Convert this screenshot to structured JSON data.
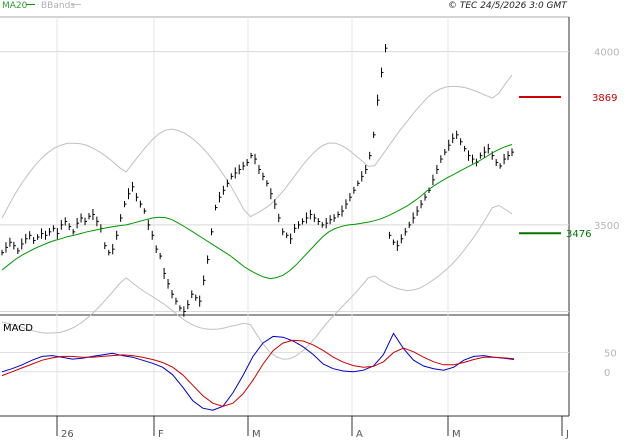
{
  "header": {
    "ma_legend": "MA20",
    "bb_legend": "BBands",
    "stamp": "© TEC 24/5/2026 3:0 GMT"
  },
  "colors": {
    "price": "#000000",
    "ma": "#009900",
    "bands": "#c0c0c0",
    "grid": "#d8d8d8",
    "resistance": "#cc0000",
    "support": "#007700",
    "macd": "#0000cc",
    "signal": "#cc0000"
  },
  "chart_data": [
    {
      "type": "line",
      "title": "",
      "ylim": [
        3240,
        4100
      ],
      "y_ticks": [
        "4000",
        "3500"
      ],
      "x_ticks": [
        "26",
        "F",
        "M",
        "A",
        "M",
        "J"
      ],
      "grid": true,
      "levels": [
        {
          "name": "resistance",
          "value": 3869,
          "label": "3869"
        },
        {
          "name": "support",
          "value": 3476,
          "label": "3476"
        }
      ],
      "series": [
        {
          "name": "price-bars",
          "values": [
            3420,
            3435,
            3450,
            3440,
            3425,
            3445,
            3460,
            3470,
            3455,
            3465,
            3475,
            3470,
            3480,
            3490,
            3475,
            3500,
            3510,
            3495,
            3480,
            3505,
            3520,
            3510,
            3525,
            3530,
            3510,
            3490,
            3440,
            3420,
            3430,
            3470,
            3520,
            3560,
            3590,
            3610,
            3580,
            3560,
            3540,
            3500,
            3470,
            3430,
            3410,
            3360,
            3330,
            3300,
            3280,
            3260,
            3250,
            3270,
            3300,
            3290,
            3280,
            3340,
            3400,
            3480,
            3550,
            3580,
            3600,
            3620,
            3640,
            3650,
            3660,
            3670,
            3680,
            3700,
            3690,
            3660,
            3640,
            3620,
            3590,
            3560,
            3520,
            3480,
            3470,
            3460,
            3490,
            3500,
            3510,
            3520,
            3530,
            3520,
            3510,
            3500,
            3505,
            3515,
            3520,
            3530,
            3540,
            3560,
            3580,
            3600,
            3620,
            3640,
            3660,
            3700,
            3760,
            3860,
            3940,
            4010,
            3470,
            3450,
            3440,
            3460,
            3480,
            3500,
            3520,
            3540,
            3560,
            3580,
            3600,
            3630,
            3660,
            3690,
            3710,
            3730,
            3750,
            3760,
            3740,
            3720,
            3700,
            3690,
            3680,
            3700,
            3710,
            3720,
            3700,
            3680,
            3670,
            3690,
            3700,
            3710
          ],
          "color": "#000000"
        },
        {
          "name": "ma20",
          "values": [
            3370,
            3385,
            3400,
            3412,
            3422,
            3432,
            3440,
            3448,
            3455,
            3460,
            3466,
            3470,
            3475,
            3480,
            3484,
            3488,
            3492,
            3495,
            3498,
            3500,
            3505,
            3510,
            3515,
            3520,
            3522,
            3521,
            3515,
            3505,
            3494,
            3482,
            3470,
            3458,
            3446,
            3434,
            3422,
            3410,
            3395,
            3380,
            3368,
            3358,
            3350,
            3345,
            3348,
            3355,
            3368,
            3385,
            3405,
            3425,
            3445,
            3465,
            3480,
            3490,
            3496,
            3500,
            3502,
            3505,
            3508,
            3512,
            3518,
            3526,
            3535,
            3545,
            3555,
            3568,
            3582,
            3598,
            3612,
            3624,
            3635,
            3645,
            3655,
            3665,
            3675,
            3685,
            3696,
            3708,
            3718,
            3726,
            3732
          ],
          "color": "#009900"
        }
      ]
    },
    {
      "type": "line",
      "title": "MACD",
      "ylim": [
        -110,
        140
      ],
      "y_ticks": [
        "50",
        "0"
      ],
      "grid": true,
      "series": [
        {
          "name": "macd",
          "values": [
            0,
            8,
            18,
            30,
            40,
            42,
            38,
            33,
            35,
            40,
            44,
            48,
            42,
            38,
            30,
            22,
            12,
            -8,
            -40,
            -75,
            -95,
            -100,
            -90,
            -55,
            -10,
            40,
            75,
            92,
            90,
            80,
            65,
            45,
            20,
            8,
            2,
            0,
            4,
            15,
            45,
            100,
            60,
            30,
            15,
            8,
            4,
            12,
            30,
            40,
            42,
            38,
            35,
            32
          ],
          "color": "#0000cc"
        },
        {
          "name": "signal",
          "values": [
            -10,
            0,
            10,
            20,
            30,
            36,
            40,
            40,
            38,
            38,
            40,
            42,
            44,
            42,
            38,
            32,
            24,
            12,
            -8,
            -35,
            -62,
            -82,
            -90,
            -82,
            -58,
            -22,
            20,
            55,
            75,
            82,
            80,
            70,
            55,
            38,
            25,
            16,
            12,
            14,
            26,
            50,
            62,
            52,
            38,
            26,
            18,
            18,
            24,
            32,
            38,
            38,
            36,
            34
          ],
          "color": "#cc0000"
        }
      ]
    }
  ]
}
